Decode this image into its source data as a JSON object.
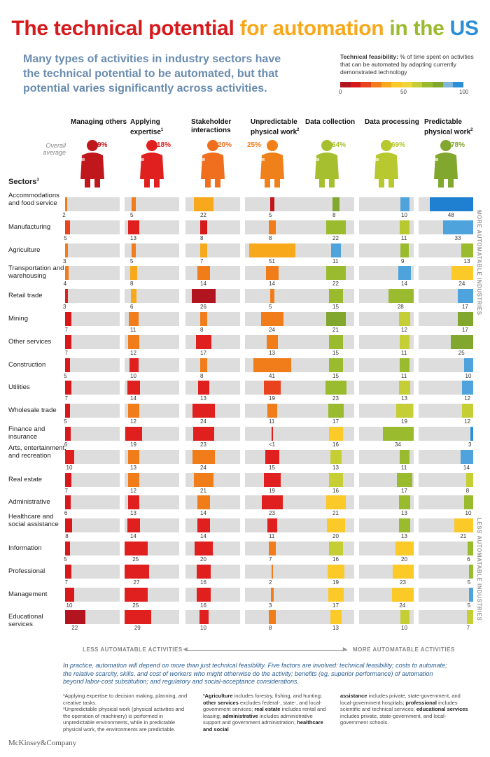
{
  "title_parts": {
    "p1": {
      "text": "The technical potential ",
      "color": "#d7191c"
    },
    "p2": {
      "text": "for automation ",
      "color": "#f7a81b"
    },
    "p3": {
      "text": "in the ",
      "color": "#9bbb2e"
    },
    "p4": {
      "text": "US",
      "color": "#2b8fd6"
    }
  },
  "subtitle": "Many types of activities in industry sectors have the technical potential to be automated, but that potential varies significantly across activities.",
  "legend": {
    "title_bold": "Technical feasibility:",
    "title_rest": " % of time spent on activities that can be automated by adapting currently demonstrated technology",
    "tick_0": "0",
    "tick_50": "50",
    "tick_100": "100",
    "colors": [
      "#b2151f",
      "#d7191c",
      "#e8431c",
      "#f07d1a",
      "#f7a81b",
      "#fbc928",
      "#f0d53a",
      "#c5cf35",
      "#9bbb2e",
      "#82a72e",
      "#7eb6dc",
      "#2b8fd6"
    ]
  },
  "overall_label": "Overall average",
  "sectors_label": "Sectors",
  "sectors_sup": "3",
  "activities": [
    {
      "name": "Managing others",
      "sup": "",
      "avg": "9%",
      "color": "#c0171d"
    },
    {
      "name": "Applying expertise",
      "sup": "1",
      "avg": "18%",
      "color": "#e0201f"
    },
    {
      "name": "Stakeholder interactions",
      "sup": "",
      "avg": "20%",
      "color": "#ef6f1f"
    },
    {
      "name": "Unpredictable physical work",
      "sup": "2",
      "avg": "25%",
      "color": "#f0801a"
    },
    {
      "name": "Data collection",
      "sup": "",
      "avg": "64%",
      "color": "#a5bf2e"
    },
    {
      "name": "Data processing",
      "sup": "",
      "avg": "69%",
      "color": "#b8c82f"
    },
    {
      "name": "Predictable physical work",
      "sup": "2",
      "avg": "78%",
      "color": "#82a72e"
    }
  ],
  "side_top": "MORE AUTOMATABLE INDUSTRIES",
  "side_bottom": "LESS AUTOMATABLE INDUSTRIES",
  "bottom_left": "LESS AUTOMATABLE ACTIVITIES",
  "bottom_right": "MORE AUTOMATABLE ACTIVITIES",
  "note": "In practice, automation will depend on more than just technical feasibility. Five factors are involved: technical feasibility; costs to automate; the relative scarcity, skills, and cost of workers who might otherwise do the activity; benefits (eg, superior performance) of automation beyond labor-cost substitution; and regulatory and social-acceptance considerations.",
  "footnotes": {
    "f1": "¹Applying expertise to decision making, planning, and creative tasks.",
    "f2": "²Unpredictable physical work (physical activities and the operation of machinery) is performed in unpredictable environments, while in predictable physical work, the environments are predictable.",
    "f3a": "³Agriculture",
    "f3b": " includes forestry, fishing, and hunting; ",
    "f3c": "other services",
    "f3d": " excludes federal-, state-, and local-government services; ",
    "f3e": "real estate",
    "f3f": " includes rental and leasing; ",
    "f3g": "administrative",
    "f3h": " includes administrative support and government administration; ",
    "f3i": "healthcare and social",
    "f4a": "assistance",
    "f4b": " includes private, state-government, and local-government hospitals; ",
    "f4c": "professional",
    "f4d": " includes scientific and technical services; ",
    "f4e": "educational services",
    "f4f": " includes private, state-government, and local-government schools."
  },
  "brand": "McKinsey&Company",
  "chart_data": {
    "type": "bar",
    "title": "The technical potential for automation in the US",
    "categories": [
      "Managing others",
      "Applying expertise",
      "Stakeholder interactions",
      "Unpredictable physical work",
      "Data collection",
      "Data processing",
      "Predictable physical work"
    ],
    "overall_average_pct": [
      9,
      18,
      20,
      25,
      64,
      69,
      78
    ],
    "value_description": "share of sector working time spent on the activity",
    "rows": [
      {
        "sector": "Accommodations and food service",
        "values": [
          "2",
          "5",
          "22",
          "5",
          "8",
          "10",
          "48"
        ],
        "colors": [
          "#f07d1a",
          "#f07d1a",
          "#f7a81b",
          "#c0171d",
          "#82a72e",
          "#4ea3dc",
          "#1f7fd0"
        ]
      },
      {
        "sector": "Manufacturing",
        "values": [
          "5",
          "13",
          "8",
          "8",
          "22",
          "11",
          "33"
        ],
        "colors": [
          "#e8431c",
          "#e0201f",
          "#d7191c",
          "#f07d1a",
          "#9bbb2e",
          "#b8c82f",
          "#4ea3dc"
        ]
      },
      {
        "sector": "Agriculture",
        "values": [
          "3",
          "5",
          "7",
          "51",
          "11",
          "9",
          "13"
        ],
        "colors": [
          "#f07d1a",
          "#f07d1a",
          "#f7a81b",
          "#f7a81b",
          "#4ea3dc",
          "#9bbb2e",
          "#9bbb2e"
        ]
      },
      {
        "sector": "Transportation and warehousing",
        "values": [
          "4",
          "8",
          "14",
          "14",
          "22",
          "14",
          "24"
        ],
        "colors": [
          "#f07d1a",
          "#f7a81b",
          "#f07d1a",
          "#f07d1a",
          "#9bbb2e",
          "#4ea3dc",
          "#fbc928"
        ]
      },
      {
        "sector": "Retail trade",
        "values": [
          "3",
          "6",
          "26",
          "5",
          "15",
          "28",
          "17"
        ],
        "colors": [
          "#e0201f",
          "#f7a81b",
          "#b2151f",
          "#f07d1a",
          "#9bbb2e",
          "#9bbb2e",
          "#4ea3dc"
        ]
      },
      {
        "sector": "Mining",
        "values": [
          "7",
          "11",
          "8",
          "24",
          "21",
          "12",
          "17"
        ],
        "colors": [
          "#d7191c",
          "#f07d1a",
          "#f07d1a",
          "#f07d1a",
          "#82a72e",
          "#c5cf35",
          "#82a72e"
        ]
      },
      {
        "sector": "Other services",
        "values": [
          "7",
          "12",
          "17",
          "13",
          "15",
          "11",
          "25"
        ],
        "colors": [
          "#d7191c",
          "#f07d1a",
          "#e0201f",
          "#f07d1a",
          "#9bbb2e",
          "#c5cf35",
          "#82a72e"
        ]
      },
      {
        "sector": "Construction",
        "values": [
          "5",
          "10",
          "8",
          "41",
          "15",
          "11",
          "10"
        ],
        "colors": [
          "#d7191c",
          "#e0201f",
          "#f07d1a",
          "#f07d1a",
          "#9bbb2e",
          "#9bbb2e",
          "#4ea3dc"
        ]
      },
      {
        "sector": "Utilities",
        "values": [
          "7",
          "14",
          "13",
          "19",
          "23",
          "13",
          "12"
        ],
        "colors": [
          "#d7191c",
          "#e0201f",
          "#e0201f",
          "#e8431c",
          "#9bbb2e",
          "#c5cf35",
          "#4ea3dc"
        ]
      },
      {
        "sector": "Wholesale trade",
        "values": [
          "5",
          "12",
          "24",
          "11",
          "17",
          "19",
          "12"
        ],
        "colors": [
          "#d7191c",
          "#f07d1a",
          "#e0201f",
          "#f07d1a",
          "#9bbb2e",
          "#c5cf35",
          "#c5cf35"
        ]
      },
      {
        "sector": "Finance and insurance",
        "values": [
          "6",
          "19",
          "23",
          "<1",
          "16",
          "34",
          "3"
        ],
        "colors": [
          "#d7191c",
          "#e0201f",
          "#e0201f",
          "#e0201f",
          "#fbc928",
          "#9bbb2e",
          "#2b8fd6"
        ]
      },
      {
        "sector": "Arts, entertainment, and recreation",
        "values": [
          "10",
          "13",
          "24",
          "15",
          "13",
          "11",
          "14"
        ],
        "colors": [
          "#e0201f",
          "#f07d1a",
          "#f07d1a",
          "#e0201f",
          "#c5cf35",
          "#9bbb2e",
          "#4ea3dc"
        ]
      },
      {
        "sector": "Real estate",
        "values": [
          "7",
          "12",
          "21",
          "19",
          "16",
          "17",
          "8"
        ],
        "colors": [
          "#d7191c",
          "#f07d1a",
          "#f07d1a",
          "#e0201f",
          "#c5cf35",
          "#9bbb2e",
          "#c5cf35"
        ]
      },
      {
        "sector": "Administrative",
        "values": [
          "6",
          "13",
          "14",
          "23",
          "21",
          "13",
          "10"
        ],
        "colors": [
          "#d7191c",
          "#e0201f",
          "#f07d1a",
          "#e0201f",
          "#fbc928",
          "#9bbb2e",
          "#9bbb2e"
        ]
      },
      {
        "sector": "Healthcare and social assistance",
        "values": [
          "8",
          "14",
          "14",
          "11",
          "20",
          "13",
          "21"
        ],
        "colors": [
          "#d7191c",
          "#e0201f",
          "#e0201f",
          "#e0201f",
          "#fbc928",
          "#9bbb2e",
          "#fbc928"
        ]
      },
      {
        "sector": "Information",
        "values": [
          "5",
          "25",
          "20",
          "7",
          "16",
          "20",
          "6"
        ],
        "colors": [
          "#d7191c",
          "#e0201f",
          "#e0201f",
          "#f07d1a",
          "#c5cf35",
          "#fbc928",
          "#9bbb2e"
        ]
      },
      {
        "sector": "Professional",
        "values": [
          "7",
          "27",
          "16",
          "2",
          "19",
          "23",
          "5"
        ],
        "colors": [
          "#d7191c",
          "#e0201f",
          "#e0201f",
          "#f07d1a",
          "#fbc928",
          "#fbc928",
          "#9bbb2e"
        ]
      },
      {
        "sector": "Management",
        "values": [
          "10",
          "25",
          "16",
          "3",
          "17",
          "24",
          "5"
        ],
        "colors": [
          "#d7191c",
          "#e0201f",
          "#e0201f",
          "#f07d1a",
          "#fbc928",
          "#fbc928",
          "#4ea3dc"
        ]
      },
      {
        "sector": "Educational services",
        "values": [
          "22",
          "29",
          "10",
          "8",
          "13",
          "10",
          "7"
        ],
        "colors": [
          "#b2151f",
          "#e0201f",
          "#e0201f",
          "#f07d1a",
          "#fbc928",
          "#c5cf35",
          "#c5cf35"
        ]
      }
    ]
  }
}
